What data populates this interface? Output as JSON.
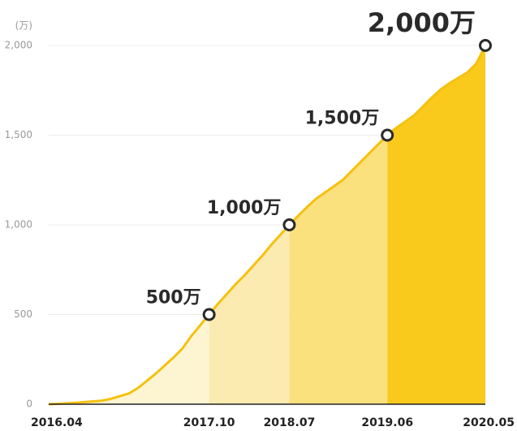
{
  "chart_data": {
    "type": "area",
    "y_unit_label": "(万)",
    "x": [
      "2016.04",
      "2016.05",
      "2016.06",
      "2016.07",
      "2016.08",
      "2016.09",
      "2016.10",
      "2016.11",
      "2016.12",
      "2017.01",
      "2017.02",
      "2017.03",
      "2017.04",
      "2017.05",
      "2017.06",
      "2017.07",
      "2017.08",
      "2017.09",
      "2017.10",
      "2017.11",
      "2017.12",
      "2018.01",
      "2018.02",
      "2018.03",
      "2018.04",
      "2018.05",
      "2018.06",
      "2018.07",
      "2018.08",
      "2018.09",
      "2018.10",
      "2018.11",
      "2018.12",
      "2019.01",
      "2019.02",
      "2019.03",
      "2019.04",
      "2019.05",
      "2019.06",
      "2019.07",
      "2019.08",
      "2019.09",
      "2019.10",
      "2019.11",
      "2019.12",
      "2020.01",
      "2020.02",
      "2020.03",
      "2020.04",
      "2020.05"
    ],
    "values": [
      0,
      2,
      5,
      8,
      12,
      16,
      20,
      30,
      45,
      60,
      90,
      130,
      170,
      215,
      260,
      310,
      380,
      440,
      500,
      560,
      615,
      670,
      720,
      775,
      830,
      890,
      945,
      1000,
      1050,
      1100,
      1145,
      1180,
      1215,
      1250,
      1300,
      1350,
      1400,
      1450,
      1500,
      1540,
      1575,
      1610,
      1660,
      1710,
      1755,
      1790,
      1820,
      1850,
      1900,
      2000
    ],
    "xticks": [
      "2016.04",
      "2017.10",
      "2018.07",
      "2019.06",
      "2020.05"
    ],
    "ylim": [
      0,
      2000
    ],
    "yticks": [
      0,
      {
        "value": 500,
        "label": "500"
      },
      {
        "value": 1000,
        "label": "1,000"
      },
      {
        "value": 1500,
        "label": "1,500"
      },
      {
        "value": 2000,
        "label": "2,000"
      }
    ],
    "grid": true,
    "line_color": "#f5c10f",
    "area_colors": [
      "#fdf4d2",
      "#fcebb0",
      "#fbe07e",
      "#f9c91c"
    ],
    "annotations": [
      {
        "x": "2017.10",
        "y": 500,
        "label": "500万"
      },
      {
        "x": "2018.07",
        "y": 1000,
        "label": "1,000万"
      },
      {
        "x": "2019.06",
        "y": 1500,
        "label": "1,500万"
      },
      {
        "x": "2020.05",
        "y": 2000,
        "label": "2,000万"
      }
    ]
  }
}
